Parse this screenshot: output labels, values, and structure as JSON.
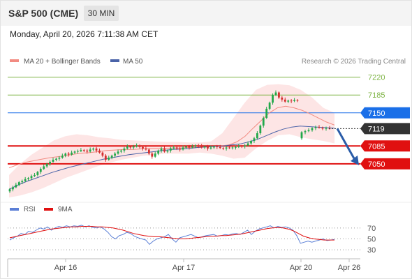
{
  "header": {
    "title": "S&P 500 (CME)",
    "timeframe": "30 MIN",
    "timestamp": "Monday, April 20, 2026 7:11:38 AM CET"
  },
  "colors": {
    "ma20": "#f28b82",
    "ma50": "#4a63a8",
    "band_fill": "#fde2e2",
    "bull": "#22a84a",
    "bear": "#d32f2f",
    "resistance_line": "#1a6fe8",
    "support_line": "#e01010",
    "target_line": "#7cb342",
    "current_tag": "#333333",
    "rsi": "#5b7fd6",
    "rsi_ma": "#e01010",
    "arrow": "#2a5ca8"
  },
  "chart_data": [
    {
      "type": "candlestick",
      "legend": [
        {
          "name": "MA 20 + Bollinger Bands",
          "color": "#f28b82"
        },
        {
          "name": "MA 50",
          "color": "#4a63a8"
        }
      ],
      "legend_position": "top-left",
      "watermark": "Research © 2026 Trading Central",
      "x_ticks": [
        "Apr 16",
        "Apr 17",
        "Apr 20",
        "Apr 26"
      ],
      "ylim": [
        6980,
        7240
      ],
      "current_price": 7119,
      "levels": [
        {
          "value": 7220,
          "label": "7220",
          "kind": "target"
        },
        {
          "value": 7185,
          "label": "7185",
          "kind": "target"
        },
        {
          "value": 7150,
          "label": "7150",
          "kind": "resistance"
        },
        {
          "value": 7085,
          "label": "7085",
          "kind": "support"
        },
        {
          "value": 7050,
          "label": "7050",
          "kind": "support"
        }
      ],
      "forecast_arrow": {
        "from": 7119,
        "to": 7050
      },
      "close": [
        7000,
        7004,
        7009,
        7014,
        7016,
        7020,
        7022,
        7026,
        7028,
        7034,
        7040,
        7045,
        7050,
        7054,
        7058,
        7060,
        7062,
        7066,
        7070,
        7068,
        7072,
        7074,
        7075,
        7077,
        7076,
        7074,
        7078,
        7080,
        7076,
        7072,
        7066,
        7058,
        7062,
        7066,
        7070,
        7074,
        7076,
        7080,
        7084,
        7082,
        7084,
        7086,
        7083,
        7080,
        7078,
        7070,
        7064,
        7070,
        7076,
        7080,
        7074,
        7076,
        7080,
        7082,
        7080,
        7078,
        7082,
        7084,
        7082,
        7084,
        7086,
        7085,
        7082,
        7084,
        7080,
        7082,
        7084,
        7083,
        7081,
        7080,
        7082,
        7081,
        7082,
        7083,
        7085,
        7084,
        7086,
        7090,
        7095,
        7100,
        7110,
        7125,
        7140,
        7158,
        7170,
        7185,
        7190,
        7180,
        7176,
        7172,
        7174,
        7173,
        7175,
        7174
      ],
      "gap_close": [
        7112,
        7114,
        7116,
        7120,
        7122,
        7121,
        7119,
        7120,
        7119
      ],
      "ma20": [
        7042,
        7048,
        7053,
        7056,
        7059,
        7062,
        7064,
        7066,
        7069,
        7071,
        7072,
        7074,
        7076,
        7077,
        7078,
        7078,
        7079,
        7080,
        7080,
        7080,
        7081,
        7081,
        7082,
        7082,
        7083,
        7084,
        7085,
        7087,
        7093,
        7104,
        7120,
        7135,
        7150,
        7160,
        7163,
        7160,
        7155,
        7148,
        7140,
        7132,
        7126
      ],
      "ma50": [
        7000,
        7008,
        7015,
        7021,
        7027,
        7033,
        7038,
        7043,
        7047,
        7051,
        7055,
        7059,
        7062,
        7065,
        7068,
        7070,
        7072,
        7074,
        7076,
        7078,
        7079,
        7080,
        7082,
        7083,
        7084,
        7085,
        7087,
        7089,
        7093,
        7098,
        7105,
        7112,
        7118,
        7122,
        7124,
        7123,
        7122,
        7121,
        7120
      ],
      "bb_upper": [
        7028,
        7050,
        7068,
        7082,
        7096,
        7104,
        7108,
        7106,
        7102,
        7100,
        7097,
        7096,
        7095,
        7094,
        7093,
        7093,
        7092,
        7092,
        7094,
        7110,
        7140,
        7170,
        7195,
        7205,
        7206,
        7204,
        7195,
        7180,
        7160,
        7150
      ],
      "bb_lower": [
        6984,
        6988,
        6994,
        7002,
        7012,
        7022,
        7030,
        7038,
        7046,
        7052,
        7058,
        7062,
        7066,
        7068,
        7070,
        7070,
        7070,
        7072,
        7070,
        7066,
        7060,
        7062,
        7080,
        7095,
        7106,
        7108,
        7102,
        7098,
        7095,
        7090
      ]
    },
    {
      "type": "line",
      "legend": [
        {
          "name": "RSI",
          "color": "#5b7fd6"
        },
        {
          "name": "9MA",
          "color": "#e01010"
        }
      ],
      "ylim": [
        20,
        80
      ],
      "y_ticks": [
        70,
        50,
        30
      ],
      "rsi": [
        48,
        52,
        55,
        60,
        58,
        64,
        62,
        66,
        70,
        68,
        72,
        66,
        70,
        73,
        71,
        74,
        72,
        74,
        73,
        75,
        72,
        74,
        71,
        70,
        72,
        68,
        62,
        54,
        50,
        56,
        58,
        62,
        60,
        55,
        52,
        50,
        48,
        40,
        46,
        50,
        52,
        54,
        58,
        50,
        44,
        52,
        54,
        56,
        58,
        55,
        52,
        54,
        56,
        57,
        58,
        55,
        56,
        58,
        57,
        59,
        60,
        58,
        62,
        66,
        58,
        64,
        68,
        70,
        72,
        74,
        70,
        73,
        71,
        72,
        70,
        66,
        56,
        42,
        44,
        46,
        44,
        46,
        48,
        50,
        47,
        48,
        49
      ],
      "rsi_ma": [
        52,
        54,
        56,
        58,
        60,
        62,
        64,
        66,
        68,
        69,
        70,
        71,
        72,
        72,
        73,
        73,
        73,
        72,
        72,
        71,
        70,
        68,
        66,
        63,
        60,
        58,
        56,
        55,
        54,
        54,
        53,
        52,
        51,
        50,
        50,
        51,
        52,
        53,
        54,
        55,
        55,
        56,
        56,
        57,
        58,
        59,
        61,
        63,
        65,
        67,
        69,
        70,
        71,
        70,
        68,
        65,
        60,
        55,
        52,
        50,
        49,
        48,
        48,
        48
      ]
    }
  ]
}
